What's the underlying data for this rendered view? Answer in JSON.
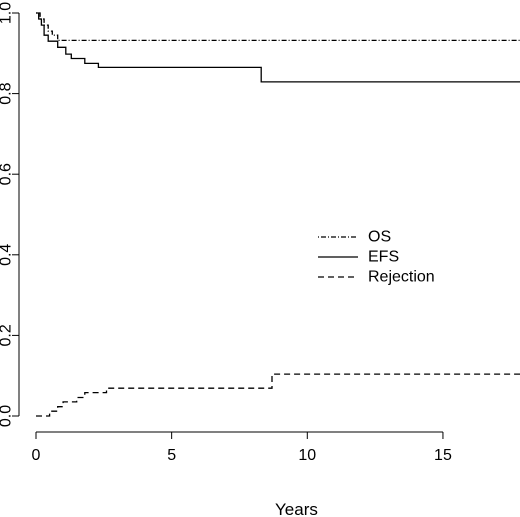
{
  "chart_data": {
    "type": "line",
    "title": "",
    "xlabel": "Years",
    "ylabel": "",
    "xlim": [
      0,
      18
    ],
    "ylim": [
      0,
      1
    ],
    "xticks": [
      0,
      5,
      10,
      15
    ],
    "xtick_labels": [
      "0",
      "5",
      "10",
      "15"
    ],
    "yticks": [
      0.0,
      0.2,
      0.4,
      0.6,
      0.8,
      1.0
    ],
    "ytick_labels": [
      "0.0",
      "0.2",
      "0.4",
      "0.6",
      "0.8",
      "1.0"
    ],
    "grid": false,
    "legend_position": "center-right",
    "series": [
      {
        "name": "OS",
        "line_style": "dotdash",
        "color": "#000000",
        "x": [
          0,
          0.15,
          0.3,
          0.45,
          0.6,
          0.8,
          18
        ],
        "y": [
          1.0,
          0.985,
          0.97,
          0.955,
          0.945,
          0.932,
          0.932
        ]
      },
      {
        "name": "EFS",
        "line_style": "solid",
        "color": "#000000",
        "x": [
          0,
          0.1,
          0.2,
          0.3,
          0.45,
          0.8,
          1.1,
          1.3,
          1.8,
          2.3,
          8.3,
          18
        ],
        "y": [
          1.0,
          0.985,
          0.97,
          0.945,
          0.93,
          0.915,
          0.898,
          0.887,
          0.875,
          0.865,
          0.829,
          0.829
        ]
      },
      {
        "name": "Rejection",
        "line_style": "dashed",
        "color": "#000000",
        "x": [
          0,
          0.5,
          0.8,
          1.0,
          1.5,
          1.8,
          2.0,
          2.6,
          2.8,
          8.7,
          18
        ],
        "y": [
          0.0,
          0.012,
          0.023,
          0.035,
          0.046,
          0.058,
          0.058,
          0.069,
          0.069,
          0.104,
          0.104
        ]
      }
    ]
  }
}
